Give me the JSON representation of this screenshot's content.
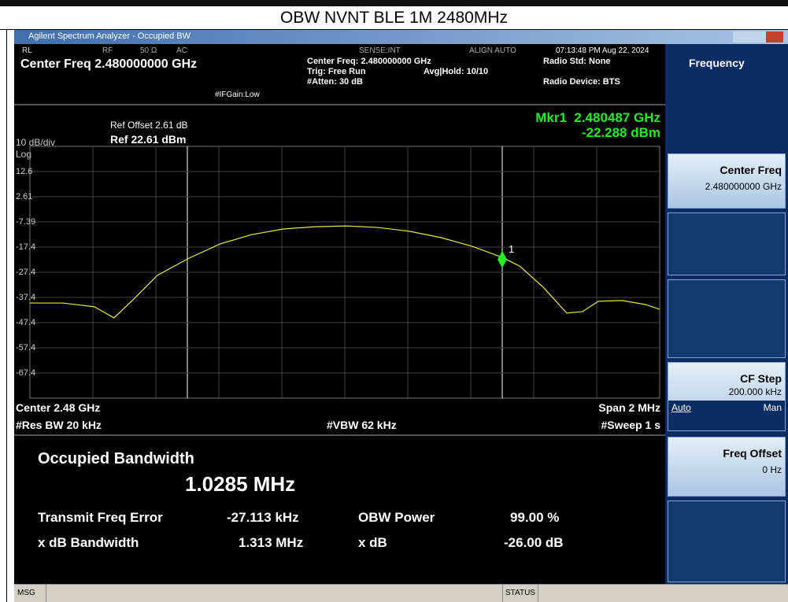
{
  "page_title": "OBW NVNT BLE 1M 2480MHz",
  "window_title": "Agilent Spectrum Analyzer - Occupied BW",
  "status": {
    "rl": "RL",
    "rf": "RF",
    "impedance": "50 Ω",
    "coupling": "AC",
    "sense": "SENSE:INT",
    "align": "ALIGN AUTO",
    "time": "07:13:48 PM Aug 22, 2024",
    "center_freq": "Center Freq 2.480000000 GHz",
    "ifgain": "#IFGain:Low",
    "center_freq2": "Center Freq: 2.480000000 GHz",
    "trig": "Trig: Free Run",
    "avg": "Avg|Hold: 10/10",
    "atten": "#Atten: 30 dB",
    "radio_std": "Radio Std: None",
    "radio_device": "Radio Device: BTS"
  },
  "plot": {
    "ref_offset": "Ref Offset 2.61 dB",
    "ref_level": "Ref 22.61 dBm",
    "scale": "10 dB/div",
    "log": "Log",
    "marker_label": "Mkr1",
    "marker_freq": "2.480487 GHz",
    "marker_value": -22.288,
    "marker_value_label": "-22.288 dBm",
    "marker_number": "1",
    "marker_x": 0.5,
    "ylim": [
      -77.39,
      22.61
    ],
    "xlim": [
      -1,
      1
    ],
    "yticks": [
      {
        "value": 12.61,
        "label": "12.6"
      },
      2.61,
      -7.39,
      {
        "value": -17.39,
        "label": "-17.4"
      },
      {
        "value": -27.39,
        "label": "-27.4"
      },
      {
        "value": -37.39,
        "label": "-37.4"
      },
      {
        "value": -47.39,
        "label": "-47.4"
      },
      {
        "value": -57.39,
        "label": "-57.4"
      },
      {
        "value": -67.39,
        "label": "-67.4"
      }
    ],
    "trace": {
      "color": "#e8e840",
      "x": [
        -1,
        -0.895,
        -0.795,
        -0.733,
        -0.67,
        -0.595,
        -0.495,
        -0.395,
        -0.295,
        -0.195,
        -0.095,
        0.005,
        0.105,
        0.205,
        0.305,
        0.405,
        0.5,
        0.555,
        0.63,
        0.705,
        0.755,
        0.805,
        0.88,
        0.955,
        1
      ],
      "values": [
        -39.6,
        -39.6,
        -41.1,
        -45.5,
        -38.0,
        -28.6,
        -21.8,
        -16.1,
        -12.4,
        -10.2,
        -9.3,
        -9.0,
        -9.6,
        -11.1,
        -13.6,
        -17.1,
        -21.5,
        -24.9,
        -33.3,
        -43.6,
        -43.0,
        -38.9,
        -38.6,
        -40.2,
        -42.1
      ]
    },
    "center": "Center 2.48 GHz",
    "res_bw": "#Res BW 20 kHz",
    "vbw": "#VBW 62 kHz",
    "span": "Span 2 MHz",
    "sweep": "#Sweep 1 s"
  },
  "results": {
    "heading": "Occupied Bandwidth",
    "obw": "1.0285 MHz",
    "rows": [
      [
        "Transmit Freq Error",
        "-27.113 kHz",
        "OBW Power",
        "99.00 %"
      ],
      [
        "x dB Bandwidth",
        "1.313 MHz",
        "x dB",
        "-26.00 dB"
      ]
    ]
  },
  "softkeys": {
    "menu": "Frequency",
    "center_freq": {
      "label": "Center Freq",
      "value": "2.480000000 GHz"
    },
    "cf_step": {
      "label": "CF Step",
      "value": "200.000 kHz",
      "auto": "Auto",
      "man": "Man"
    },
    "freq_offset": {
      "label": "Freq Offset",
      "value": "0 Hz"
    }
  },
  "statusbar": {
    "msg": "MSG",
    "status": "STATUS"
  }
}
